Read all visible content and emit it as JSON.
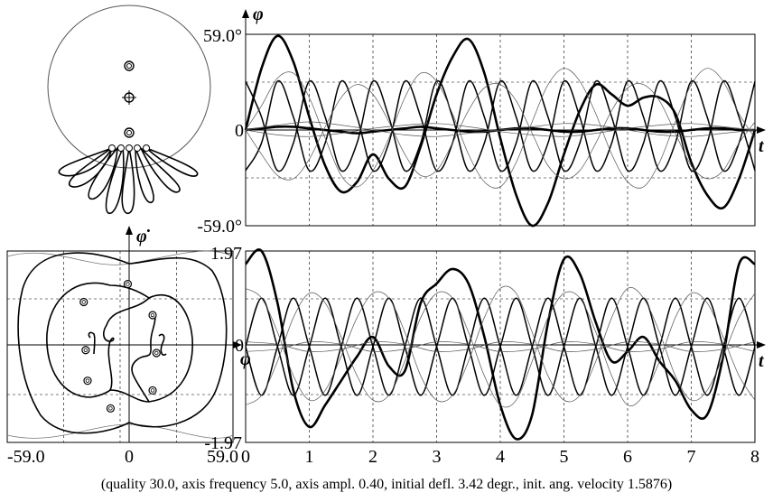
{
  "chart_data": [
    {
      "type": "diagram",
      "panel": "pendulum-view"
    },
    {
      "type": "line",
      "panel": "angle-vs-time",
      "ylabel": "φ",
      "xlabel": "t",
      "y_tick_labels": {
        "top": "59.0°",
        "zero": "0",
        "bottom": "-59.0°"
      },
      "xlim": [
        0,
        8
      ],
      "ylim": [
        -59.0,
        59.0
      ],
      "grid": true,
      "series": [
        {
          "weight": "thick",
          "x": [
            0,
            0.25,
            0.5,
            0.75,
            1.0,
            1.25,
            1.5,
            1.75,
            2.0,
            2.25,
            2.5,
            2.75,
            3.0,
            3.25,
            3.5,
            3.75,
            4.0,
            4.25,
            4.5,
            4.75,
            5.0,
            5.25,
            5.5,
            5.75,
            6.0,
            6.25,
            6.5,
            6.75,
            7.0,
            7.25,
            7.5,
            7.75,
            8.0
          ],
          "y": [
            0,
            38,
            58,
            42,
            8,
            -22,
            -38,
            -32,
            -15,
            -30,
            -35,
            -10,
            22,
            45,
            56,
            35,
            -5,
            -40,
            -59,
            -45,
            -15,
            12,
            28,
            22,
            15,
            20,
            20,
            10,
            -20,
            -40,
            -48,
            -30,
            0
          ]
        },
        {
          "weight": "thick",
          "x": [
            0,
            0.25,
            0.5,
            0.75,
            1.0,
            1.25,
            1.5,
            1.75,
            2.0,
            2.25,
            2.5,
            2.75,
            3.0,
            3.25,
            3.5,
            3.75,
            4.0,
            4.25,
            4.5,
            4.75,
            5.0,
            5.25,
            5.5,
            5.75,
            6.0,
            6.25,
            6.5,
            6.75,
            7.0,
            7.25,
            7.5,
            7.75,
            8.0
          ],
          "y": [
            0,
            1,
            2,
            2,
            1,
            0,
            -1,
            -2,
            -1,
            0,
            1,
            2,
            1,
            0,
            -1,
            -1,
            0,
            1,
            1,
            0,
            -1,
            -1,
            0,
            1,
            1,
            0,
            -1,
            -1,
            0,
            1,
            1,
            0,
            0
          ]
        },
        {
          "weight": "medium",
          "x": [
            0,
            0.25,
            0.5,
            0.75,
            1.0,
            1.25,
            1.5,
            1.75,
            2.0,
            2.25,
            2.5,
            2.75,
            3.0,
            3.25,
            3.5,
            3.75,
            4.0,
            4.25,
            4.5,
            4.75,
            5.0,
            5.25,
            5.5,
            5.75,
            6.0,
            6.25,
            6.5,
            6.75,
            7.0,
            7.25,
            7.5,
            7.75,
            8.0
          ],
          "y": [
            30,
            8,
            -25,
            -8,
            30,
            8,
            -25,
            -8,
            30,
            8,
            -25,
            -8,
            30,
            8,
            -25,
            -8,
            30,
            8,
            -25,
            -8,
            30,
            8,
            -25,
            -8,
            30,
            8,
            -25,
            -8,
            30,
            8,
            -25,
            -8,
            30
          ]
        },
        {
          "weight": "medium",
          "x": [
            0,
            0.25,
            0.5,
            0.75,
            1.0,
            1.25,
            1.5,
            1.75,
            2.0,
            2.25,
            2.5,
            2.75,
            3.0,
            3.25,
            3.5,
            3.75,
            4.0,
            4.25,
            4.5,
            4.75,
            5.0,
            5.25,
            5.5,
            5.75,
            6.0,
            6.25,
            6.5,
            6.75,
            7.0,
            7.25,
            7.5,
            7.75,
            8.0
          ],
          "y": [
            -25,
            -8,
            30,
            8,
            -25,
            -8,
            30,
            8,
            -25,
            -8,
            30,
            8,
            -25,
            -8,
            30,
            8,
            -25,
            -8,
            30,
            8,
            -25,
            -8,
            30,
            8,
            -25,
            -8,
            30,
            8,
            -25,
            -8,
            30,
            8,
            -25
          ]
        },
        {
          "weight": "thin",
          "x": [
            0,
            0.25,
            0.5,
            0.75,
            1.0,
            1.25,
            1.5,
            1.75,
            2.0,
            2.25,
            2.5,
            2.75,
            3.0,
            3.25,
            3.5,
            3.75,
            4.0,
            4.25,
            4.5,
            4.75,
            5.0,
            5.25,
            5.5,
            5.75,
            6.0,
            6.25,
            6.5,
            6.75,
            7.0,
            7.25,
            7.5,
            7.75,
            8.0
          ],
          "y": [
            0,
            15,
            32,
            35,
            20,
            -5,
            -28,
            -35,
            -25,
            -5,
            20,
            35,
            30,
            10,
            -15,
            -32,
            -35,
            -20,
            5,
            28,
            38,
            30,
            10,
            -15,
            -32,
            -35,
            -20,
            5,
            28,
            38,
            30,
            10,
            -5
          ]
        },
        {
          "weight": "thin",
          "x": [
            0,
            0.25,
            0.5,
            0.75,
            1.0,
            1.25,
            1.5,
            1.75,
            2.0,
            2.25,
            2.5,
            2.75,
            3.0,
            3.25,
            3.5,
            3.75,
            4.0,
            4.25,
            4.5,
            4.75,
            5.0,
            5.25,
            5.5,
            5.75,
            6.0,
            6.25,
            6.5,
            6.75,
            7.0,
            7.25,
            7.5,
            7.75,
            8.0
          ],
          "y": [
            0,
            -15,
            -28,
            -30,
            -18,
            2,
            20,
            28,
            22,
            5,
            -15,
            -28,
            -25,
            -8,
            12,
            26,
            28,
            18,
            -2,
            -22,
            -30,
            -25,
            -8,
            12,
            26,
            28,
            18,
            -2,
            -22,
            -30,
            -25,
            -8,
            5
          ]
        },
        {
          "weight": "thin",
          "x": [
            0,
            0.5,
            1.0,
            1.5,
            2.0,
            2.5,
            3.0,
            3.5,
            4.0,
            4.5,
            5.0,
            5.5,
            6.0,
            6.5,
            7.0,
            7.5,
            8.0
          ],
          "y": [
            0,
            3,
            5,
            3,
            0,
            -3,
            -4,
            -2,
            0,
            2,
            4,
            3,
            0,
            -3,
            -4,
            -2,
            0
          ]
        },
        {
          "weight": "thin",
          "x": [
            0,
            0.5,
            1.0,
            1.5,
            2.0,
            2.5,
            3.0,
            3.5,
            4.0,
            4.5,
            5.0,
            5.5,
            6.0,
            6.5,
            7.0,
            7.5,
            8.0
          ],
          "y": [
            0,
            -3,
            -4,
            -2,
            1,
            3,
            4,
            2,
            -1,
            -3,
            -4,
            -2,
            1,
            3,
            4,
            2,
            0
          ]
        }
      ]
    },
    {
      "type": "scatter",
      "panel": "phase-portrait",
      "ylabel": "φ̇",
      "xlabel": "φ",
      "x_tick_labels": [
        "-59.0",
        "0",
        "59.0"
      ],
      "xlim": [
        -59.0,
        59.0
      ],
      "ylim": [
        -1.97,
        1.97
      ],
      "grid": true,
      "markers": [
        {
          "x": 4,
          "y": 1.29
        },
        {
          "x": -19,
          "y": 0.92
        },
        {
          "x": 17,
          "y": 0.65
        },
        {
          "x": -18,
          "y": -0.07
        },
        {
          "x": 19,
          "y": -0.13
        },
        {
          "x": -17,
          "y": -0.7
        },
        {
          "x": 17,
          "y": -0.9
        },
        {
          "x": -5,
          "y": -1.27
        }
      ]
    },
    {
      "type": "line",
      "panel": "velocity-vs-time",
      "xlabel": "t",
      "y_tick_labels": {
        "top": "1.97",
        "zero": "0",
        "bottom": "-1.97"
      },
      "xlim": [
        0,
        8
      ],
      "ylim": [
        -1.97,
        1.97
      ],
      "x_ticks": [
        "0",
        "1",
        "2",
        "3",
        "4",
        "5",
        "6",
        "7",
        "8"
      ],
      "grid": true,
      "series": [
        {
          "weight": "thick",
          "x": [
            0,
            0.25,
            0.5,
            0.75,
            1.0,
            1.25,
            1.5,
            1.75,
            2.0,
            2.25,
            2.5,
            2.75,
            3.0,
            3.25,
            3.5,
            3.75,
            4.0,
            4.25,
            4.5,
            4.75,
            5.0,
            5.25,
            5.5,
            5.75,
            6.0,
            6.25,
            6.5,
            6.75,
            7.0,
            7.25,
            7.5,
            7.75,
            8.0
          ],
          "y": [
            1.7,
            1.97,
            0.9,
            -0.9,
            -1.65,
            -1.2,
            -0.7,
            -0.2,
            0.2,
            -0.4,
            -0.5,
            0.9,
            1.3,
            1.6,
            1.3,
            0.2,
            -1.2,
            -1.9,
            -1.4,
            0.5,
            1.8,
            1.5,
            0.5,
            -0.3,
            -0.1,
            0.2,
            -0.3,
            -0.7,
            -1.3,
            -1.4,
            -0.2,
            1.7,
            1.7
          ]
        },
        {
          "weight": "medium",
          "x": [
            0,
            0.25,
            0.5,
            0.75,
            1.0,
            1.25,
            1.5,
            1.75,
            2.0,
            2.25,
            2.5,
            2.75,
            3.0,
            3.25,
            3.5,
            3.75,
            4.0,
            4.25,
            4.5,
            4.75,
            5.0,
            5.25,
            5.5,
            5.75,
            6.0,
            6.25,
            6.5,
            6.75,
            7.0,
            7.25,
            7.5,
            7.75,
            8.0
          ],
          "y": [
            0,
            1.0,
            0,
            -1.0,
            0,
            1.0,
            0,
            -1.0,
            0,
            1.0,
            0,
            -1.0,
            0,
            1.0,
            0,
            -1.0,
            0,
            1.0,
            0,
            -1.0,
            0,
            1.0,
            0,
            -1.0,
            0,
            1.0,
            0,
            -1.0,
            0,
            1.0,
            0,
            -1.0,
            0
          ]
        },
        {
          "weight": "medium",
          "x": [
            0,
            0.25,
            0.5,
            0.75,
            1.0,
            1.25,
            1.5,
            1.75,
            2.0,
            2.25,
            2.5,
            2.75,
            3.0,
            3.25,
            3.5,
            3.75,
            4.0,
            4.25,
            4.5,
            4.75,
            5.0,
            5.25,
            5.5,
            5.75,
            6.0,
            6.25,
            6.5,
            6.75,
            7.0,
            7.25,
            7.5,
            7.75,
            8.0
          ],
          "y": [
            0,
            -1.0,
            0,
            1.0,
            0,
            -1.0,
            0,
            1.0,
            0,
            -1.0,
            0,
            1.0,
            0,
            -1.0,
            0,
            1.0,
            0,
            -1.0,
            0,
            1.0,
            0,
            -1.0,
            0,
            1.0,
            0,
            -1.0,
            0,
            1.0,
            0,
            -1.0,
            0,
            1.0,
            0
          ]
        },
        {
          "weight": "thin",
          "x": [
            0,
            0.25,
            0.5,
            0.75,
            1.0,
            1.25,
            1.5,
            1.75,
            2.0,
            2.25,
            2.5,
            2.75,
            3.0,
            3.25,
            3.5,
            3.75,
            4.0,
            4.25,
            4.5,
            4.75,
            5.0,
            5.25,
            5.5,
            5.75,
            6.0,
            6.25,
            6.5,
            6.75,
            7.0,
            7.25,
            7.5,
            7.75,
            8.0
          ],
          "y": [
            1.2,
            1.0,
            0.3,
            -0.6,
            -1.1,
            -0.9,
            -0.2,
            0.6,
            1.1,
            1.0,
            0.3,
            -0.6,
            -1.1,
            -1.0,
            -0.3,
            0.6,
            1.2,
            1.1,
            0.3,
            -0.6,
            -1.1,
            -1.0,
            -0.3,
            0.6,
            1.2,
            1.0,
            0.3,
            -0.6,
            -1.1,
            -0.9,
            -0.2,
            0.6,
            1.1
          ]
        },
        {
          "weight": "thin",
          "x": [
            0,
            0.25,
            0.5,
            0.75,
            1.0,
            1.25,
            1.5,
            1.75,
            2.0,
            2.25,
            2.5,
            2.75,
            3.0,
            3.25,
            3.5,
            3.75,
            4.0,
            4.25,
            4.5,
            4.75,
            5.0,
            5.25,
            5.5,
            5.75,
            6.0,
            6.25,
            6.5,
            6.75,
            7.0,
            7.25,
            7.5,
            7.75,
            8.0
          ],
          "y": [
            -1.2,
            -1.0,
            -0.3,
            0.6,
            1.1,
            0.9,
            0.2,
            -0.6,
            -1.1,
            -1.0,
            -0.3,
            0.6,
            1.1,
            1.0,
            0.3,
            -0.6,
            -1.2,
            -1.1,
            -0.3,
            0.6,
            1.1,
            1.0,
            0.3,
            -0.6,
            -1.2,
            -1.0,
            -0.3,
            0.6,
            1.1,
            0.9,
            0.2,
            -0.6,
            -1.1
          ]
        },
        {
          "weight": "thin",
          "x": [
            0,
            0.5,
            1.0,
            1.5,
            2.0,
            2.5,
            3.0,
            3.5,
            4.0,
            4.5,
            5.0,
            5.5,
            6.0,
            6.5,
            7.0,
            7.5,
            8.0
          ],
          "y": [
            0.1,
            0.05,
            -0.1,
            -0.05,
            0.1,
            0.05,
            -0.1,
            -0.05,
            0.1,
            0.05,
            -0.1,
            -0.05,
            0.1,
            0.05,
            -0.1,
            -0.05,
            0.1
          ]
        },
        {
          "weight": "thin",
          "x": [
            0,
            0.5,
            1.0,
            1.5,
            2.0,
            2.5,
            3.0,
            3.5,
            4.0,
            4.5,
            5.0,
            5.5,
            6.0,
            6.5,
            7.0,
            7.5,
            8.0
          ],
          "y": [
            -0.1,
            -0.05,
            0.1,
            0.05,
            -0.1,
            -0.05,
            0.1,
            0.05,
            -0.1,
            -0.05,
            0.1,
            0.05,
            -0.1,
            -0.05,
            0.1,
            0.05,
            -0.1
          ]
        }
      ]
    }
  ],
  "caption": "(quality 30.0,  axis frequency 5.0, axis ampl. 0.40,  initial defl. 3.42 degr.,  init. ang. velocity 1.5876)"
}
